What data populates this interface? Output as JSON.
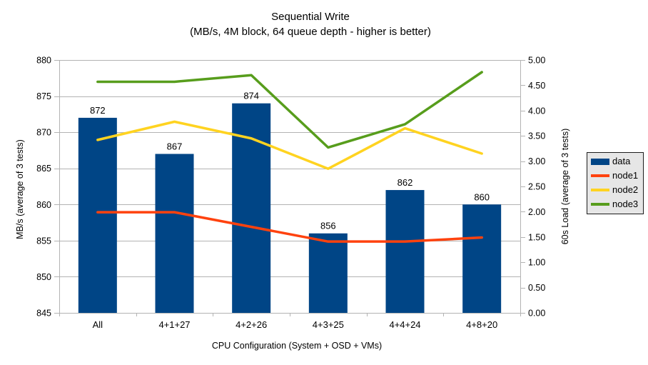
{
  "title": {
    "line1": "Sequential Write",
    "line2": "(MB/s, 4M block, 64 queue depth - higher is better)"
  },
  "chart_data": {
    "type": "bar+line combo, dual axis",
    "categories": [
      "All",
      "4+1+27",
      "4+2+26",
      "4+3+25",
      "4+4+24",
      "4+8+20"
    ],
    "series": [
      {
        "name": "data",
        "type": "bar",
        "axis": "left",
        "color": "#004586",
        "values": [
          872,
          867,
          874,
          856,
          862,
          860
        ],
        "show_labels": true
      },
      {
        "name": "node1",
        "type": "line",
        "axis": "right",
        "color": "#ff420e",
        "values": [
          1.99,
          1.99,
          1.7,
          1.41,
          1.41,
          1.49
        ]
      },
      {
        "name": "node2",
        "type": "line",
        "axis": "right",
        "color": "#ffd320",
        "values": [
          3.42,
          3.78,
          3.45,
          2.85,
          3.65,
          3.15
        ]
      },
      {
        "name": "node3",
        "type": "line",
        "axis": "right",
        "color": "#579d1c",
        "values": [
          4.57,
          4.57,
          4.7,
          3.27,
          3.73,
          4.76
        ]
      }
    ],
    "left_axis": {
      "title": "MB/s (average of 3 tests)",
      "min": 845,
      "max": 880,
      "step": 5
    },
    "right_axis": {
      "title": "60s Load (average of 3 tests)",
      "min": 0,
      "max": 5,
      "step": 0.5,
      "decimals": 2
    },
    "x_axis": {
      "title": "CPU Configuration (System + OSD + VMs)"
    },
    "legend": {
      "position": "right",
      "items": [
        "data",
        "node1",
        "node2",
        "node3"
      ]
    },
    "grid": {
      "horizontal": true,
      "vertical": false
    },
    "styles": {
      "background": "#ffffff",
      "grid_color": "#b3b3b3",
      "axis_color": "#b3b3b3",
      "text_color": "#000000",
      "legend_bg": "#e6e6e6",
      "legend_border": "#1c1c1c"
    }
  }
}
